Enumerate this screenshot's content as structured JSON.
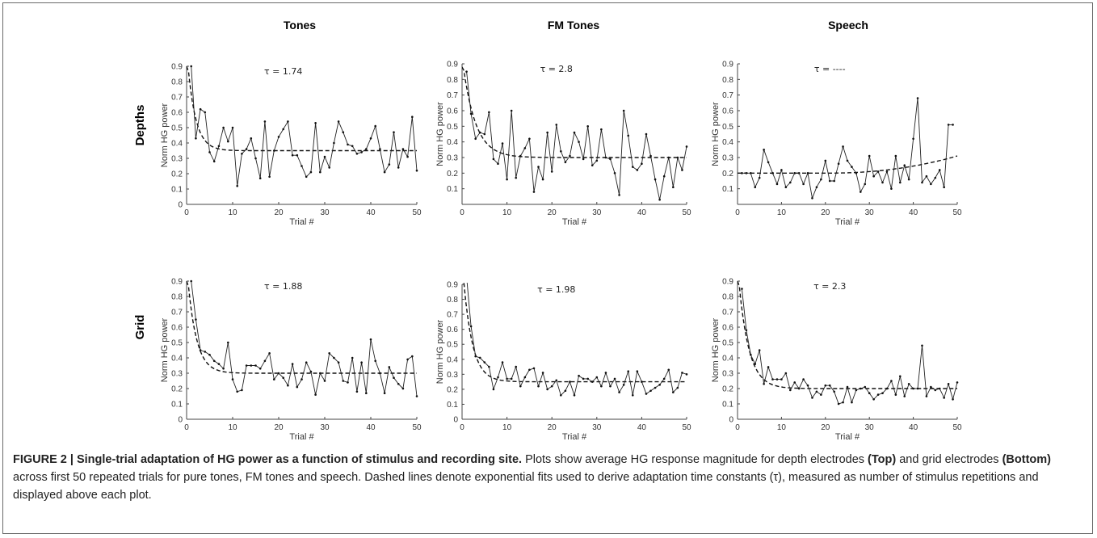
{
  "figure": {
    "column_titles": [
      "Tones",
      "FM Tones",
      "Speech"
    ],
    "row_labels": [
      "Depths",
      "Grid"
    ],
    "caption": {
      "label": "FIGURE 2 | Single-trial adaptation of HG power as a function of stimulus and recording site.",
      "text_1": " Plots show average HG response magnitude for depth electrodes ",
      "top": "(Top)",
      "text_2": " and grid electrodes ",
      "bottom": "(Bottom)",
      "text_3": " across first 50 repeated trials for pure tones, FM tones and speech. Dashed lines denote exponential fits used to derive adaptation time constants (τ), measured as number of stimulus repetitions and displayed above each plot."
    }
  },
  "chart_data": [
    {
      "type": "line",
      "row": "Depths",
      "column": "Tones",
      "annotation": "τ = 1.74",
      "xlabel": "Trial #",
      "ylabel": "Norm HG power",
      "xlim": [
        0,
        50
      ],
      "ylim": [
        0,
        0.9
      ],
      "xticks": [
        0,
        10,
        20,
        30,
        40,
        50
      ],
      "yticks": [
        0,
        0.1,
        0.2,
        0.3,
        0.4,
        0.5,
        0.6,
        0.7,
        0.8,
        0.9
      ],
      "fit": {
        "y0": 0.9,
        "yinf": 0.35,
        "tau": 1.74,
        "style": "dashed"
      },
      "x": [
        1,
        2,
        3,
        4,
        5,
        6,
        7,
        8,
        9,
        10,
        11,
        12,
        13,
        14,
        15,
        16,
        17,
        18,
        19,
        20,
        21,
        22,
        23,
        24,
        25,
        26,
        27,
        28,
        29,
        30,
        31,
        32,
        33,
        34,
        35,
        36,
        37,
        38,
        39,
        40,
        41,
        42,
        43,
        44,
        45,
        46,
        47,
        48,
        49,
        50
      ],
      "values": [
        0.9,
        0.43,
        0.62,
        0.6,
        0.34,
        0.28,
        0.38,
        0.5,
        0.41,
        0.5,
        0.12,
        0.33,
        0.36,
        0.43,
        0.3,
        0.17,
        0.54,
        0.18,
        0.35,
        0.44,
        0.49,
        0.54,
        0.32,
        0.32,
        0.25,
        0.18,
        0.21,
        0.53,
        0.21,
        0.31,
        0.24,
        0.4,
        0.54,
        0.47,
        0.39,
        0.38,
        0.33,
        0.34,
        0.36,
        0.43,
        0.51,
        0.36,
        0.21,
        0.26,
        0.47,
        0.24,
        0.36,
        0.31,
        0.57,
        0.22
      ]
    },
    {
      "type": "line",
      "row": "Depths",
      "column": "FM Tones",
      "annotation": "τ = 2.8",
      "xlabel": "Trial #",
      "ylabel": "Norm HG power",
      "xlim": [
        0,
        50
      ],
      "ylim": [
        0,
        0.9
      ],
      "xticks": [
        0,
        10,
        20,
        30,
        40,
        50
      ],
      "yticks": [
        0.1,
        0.2,
        0.3,
        0.4,
        0.5,
        0.6,
        0.7,
        0.8,
        0.9
      ],
      "fit": {
        "y0": 0.88,
        "yinf": 0.3,
        "tau": 2.8,
        "style": "dashed"
      },
      "x": [
        1,
        2,
        3,
        4,
        5,
        6,
        7,
        8,
        9,
        10,
        11,
        12,
        13,
        14,
        15,
        16,
        17,
        18,
        19,
        20,
        21,
        22,
        23,
        24,
        25,
        26,
        27,
        28,
        29,
        30,
        31,
        32,
        33,
        34,
        35,
        36,
        37,
        38,
        39,
        40,
        41,
        42,
        43,
        44,
        45,
        46,
        47,
        48,
        49,
        50
      ],
      "values": [
        0.85,
        0.58,
        0.42,
        0.46,
        0.45,
        0.59,
        0.29,
        0.26,
        0.39,
        0.16,
        0.6,
        0.17,
        0.31,
        0.36,
        0.42,
        0.08,
        0.24,
        0.16,
        0.46,
        0.21,
        0.51,
        0.34,
        0.27,
        0.31,
        0.46,
        0.4,
        0.29,
        0.5,
        0.25,
        0.28,
        0.48,
        0.3,
        0.29,
        0.2,
        0.06,
        0.6,
        0.44,
        0.24,
        0.22,
        0.26,
        0.45,
        0.31,
        0.16,
        0.03,
        0.18,
        0.3,
        0.11,
        0.3,
        0.22,
        0.37
      ]
    },
    {
      "type": "line",
      "row": "Depths",
      "column": "Speech",
      "annotation": "τ = ----",
      "xlabel": "Trial #",
      "ylabel": "Norm HG power",
      "xlim": [
        0,
        50
      ],
      "ylim": [
        0,
        0.9
      ],
      "xticks": [
        0,
        10,
        20,
        30,
        40,
        50
      ],
      "yticks": [
        0.1,
        0.2,
        0.3,
        0.4,
        0.5,
        0.6,
        0.7,
        0.8,
        0.9
      ],
      "fit": {
        "style": "dashed",
        "shape": "rising",
        "start": 0.2,
        "end": 0.31
      },
      "x": [
        1,
        2,
        3,
        4,
        5,
        6,
        7,
        8,
        9,
        10,
        11,
        12,
        13,
        14,
        15,
        16,
        17,
        18,
        19,
        20,
        21,
        22,
        23,
        24,
        25,
        26,
        27,
        28,
        29,
        30,
        31,
        32,
        33,
        34,
        35,
        36,
        37,
        38,
        39,
        40,
        41,
        42,
        43,
        44,
        45,
        46,
        47,
        48,
        49
      ],
      "values": [
        0.2,
        0.2,
        0.2,
        0.11,
        0.17,
        0.35,
        0.27,
        0.2,
        0.13,
        0.22,
        0.11,
        0.14,
        0.2,
        0.2,
        0.13,
        0.2,
        0.04,
        0.11,
        0.16,
        0.28,
        0.15,
        0.15,
        0.26,
        0.37,
        0.28,
        0.24,
        0.2,
        0.08,
        0.13,
        0.31,
        0.18,
        0.21,
        0.14,
        0.21,
        0.1,
        0.31,
        0.14,
        0.25,
        0.16,
        0.42,
        0.68,
        0.14,
        0.18,
        0.13,
        0.17,
        0.22,
        0.11,
        0.51,
        0.51
      ]
    },
    {
      "type": "line",
      "row": "Grid",
      "column": "Tones",
      "annotation": "τ = 1.88",
      "xlabel": "Trial #",
      "ylabel": "Norm HG power",
      "xlim": [
        0,
        50
      ],
      "ylim": [
        0,
        0.9
      ],
      "xticks": [
        0,
        10,
        20,
        30,
        40,
        50
      ],
      "yticks": [
        0,
        0.1,
        0.2,
        0.3,
        0.4,
        0.5,
        0.6,
        0.7,
        0.8,
        0.9
      ],
      "fit": {
        "y0": 0.9,
        "yinf": 0.3,
        "tau": 1.88,
        "style": "dashed"
      },
      "x": [
        1,
        2,
        3,
        4,
        5,
        6,
        7,
        8,
        9,
        10,
        11,
        12,
        13,
        14,
        15,
        16,
        17,
        18,
        19,
        20,
        21,
        22,
        23,
        24,
        25,
        26,
        27,
        28,
        29,
        30,
        31,
        32,
        33,
        34,
        35,
        36,
        37,
        38,
        39,
        40,
        41,
        42,
        43,
        44,
        45,
        46,
        47,
        48,
        49,
        50
      ],
      "values": [
        0.9,
        0.65,
        0.45,
        0.44,
        0.42,
        0.38,
        0.36,
        0.33,
        0.5,
        0.26,
        0.18,
        0.19,
        0.35,
        0.35,
        0.35,
        0.33,
        0.38,
        0.43,
        0.26,
        0.3,
        0.27,
        0.22,
        0.36,
        0.21,
        0.26,
        0.37,
        0.31,
        0.16,
        0.3,
        0.25,
        0.43,
        0.4,
        0.37,
        0.25,
        0.24,
        0.4,
        0.18,
        0.37,
        0.17,
        0.52,
        0.38,
        0.3,
        0.17,
        0.34,
        0.27,
        0.23,
        0.2,
        0.39,
        0.41,
        0.15
      ]
    },
    {
      "type": "line",
      "row": "Grid",
      "column": "FM Tones",
      "annotation": "τ = 1.98",
      "xlabel": "Trial #",
      "ylabel": "Norm HG power",
      "xlim": [
        0,
        50
      ],
      "ylim": [
        0,
        0.9
      ],
      "xticks": [
        0,
        10,
        20,
        30,
        40,
        50
      ],
      "yticks": [
        0,
        0.1,
        0.2,
        0.3,
        0.4,
        0.5,
        0.6,
        0.7,
        0.8,
        0.9
      ],
      "fit": {
        "y0": 0.95,
        "yinf": 0.25,
        "tau": 1.98,
        "style": "dashed"
      },
      "x": [
        1,
        2,
        3,
        4,
        5,
        6,
        7,
        8,
        9,
        10,
        11,
        12,
        13,
        14,
        15,
        16,
        17,
        18,
        19,
        20,
        21,
        22,
        23,
        24,
        25,
        26,
        27,
        28,
        29,
        30,
        31,
        32,
        33,
        34,
        35,
        36,
        37,
        38,
        39,
        40,
        41,
        42,
        43,
        44,
        45,
        46,
        47,
        48,
        49,
        50
      ],
      "values": [
        0.95,
        0.62,
        0.42,
        0.41,
        0.38,
        0.35,
        0.2,
        0.28,
        0.38,
        0.27,
        0.27,
        0.35,
        0.22,
        0.28,
        0.33,
        0.34,
        0.22,
        0.31,
        0.2,
        0.22,
        0.26,
        0.16,
        0.19,
        0.25,
        0.16,
        0.29,
        0.27,
        0.27,
        0.25,
        0.28,
        0.22,
        0.31,
        0.22,
        0.27,
        0.18,
        0.23,
        0.32,
        0.16,
        0.32,
        0.25,
        0.17,
        0.19,
        0.21,
        0.23,
        0.27,
        0.33,
        0.18,
        0.21,
        0.31,
        0.3
      ]
    },
    {
      "type": "line",
      "row": "Grid",
      "column": "Speech",
      "annotation": "τ = 2.3",
      "xlabel": "Trial #",
      "ylabel": "Norm HG power",
      "xlim": [
        0,
        50
      ],
      "ylim": [
        0,
        0.9
      ],
      "xticks": [
        0,
        10,
        20,
        30,
        40,
        50
      ],
      "yticks": [
        0,
        0.1,
        0.2,
        0.3,
        0.4,
        0.5,
        0.6,
        0.7,
        0.8,
        0.9
      ],
      "fit": {
        "y0": 0.9,
        "yinf": 0.2,
        "tau": 2.3,
        "style": "dashed"
      },
      "x": [
        1,
        2,
        3,
        4,
        5,
        6,
        7,
        8,
        9,
        10,
        11,
        12,
        13,
        14,
        15,
        16,
        17,
        18,
        19,
        20,
        21,
        22,
        23,
        24,
        25,
        26,
        27,
        28,
        29,
        30,
        31,
        32,
        33,
        34,
        35,
        36,
        37,
        38,
        39,
        40,
        41,
        42,
        43,
        44,
        45,
        46,
        47,
        48,
        49,
        50
      ],
      "values": [
        0.85,
        0.58,
        0.42,
        0.36,
        0.45,
        0.23,
        0.34,
        0.26,
        0.26,
        0.26,
        0.3,
        0.19,
        0.24,
        0.2,
        0.26,
        0.22,
        0.14,
        0.18,
        0.16,
        0.22,
        0.22,
        0.18,
        0.1,
        0.11,
        0.21,
        0.11,
        0.19,
        0.2,
        0.21,
        0.17,
        0.13,
        0.16,
        0.17,
        0.2,
        0.25,
        0.16,
        0.28,
        0.15,
        0.23,
        0.2,
        0.2,
        0.48,
        0.15,
        0.21,
        0.19,
        0.2,
        0.14,
        0.23,
        0.13,
        0.24
      ]
    }
  ]
}
